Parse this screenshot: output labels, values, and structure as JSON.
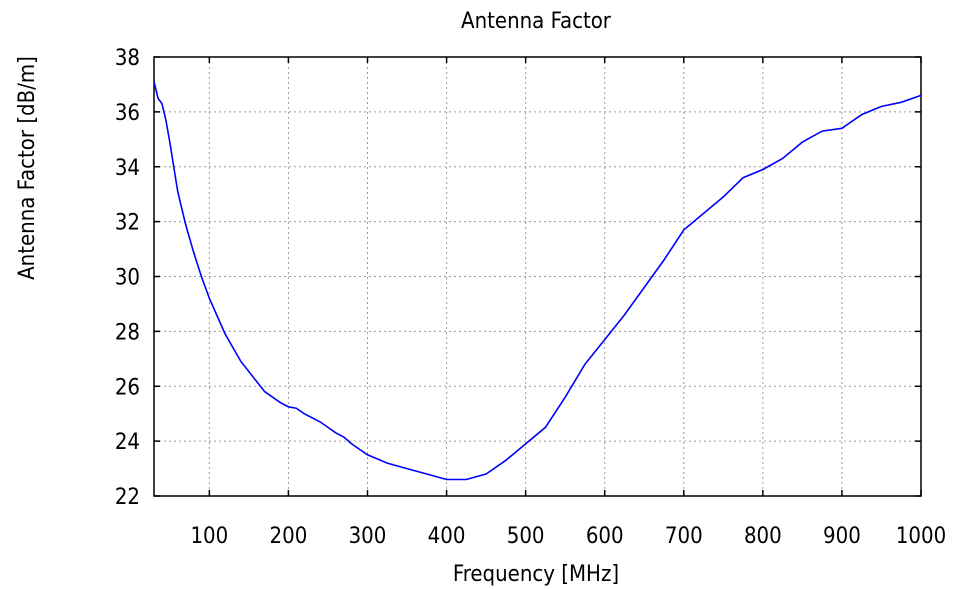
{
  "chart_data": {
    "type": "line",
    "title": "Antenna Factor",
    "xlabel": "Frequency [MHz]",
    "ylabel": "Antenna Factor [dB/m]",
    "xlim": [
      30,
      1000
    ],
    "ylim": [
      22,
      38
    ],
    "xticks": [
      100,
      200,
      300,
      400,
      500,
      600,
      700,
      800,
      900,
      1000
    ],
    "yticks": [
      22,
      24,
      26,
      28,
      30,
      32,
      34,
      36,
      38
    ],
    "grid": true,
    "line_color": "#0000ff",
    "series": [
      {
        "x": [
          30,
          35,
          40,
          45,
          50,
          60,
          70,
          80,
          90,
          100,
          120,
          140,
          170,
          180,
          190,
          200,
          210,
          220,
          240,
          260,
          270,
          280,
          290,
          300,
          325,
          350,
          375,
          400,
          425,
          450,
          475,
          500,
          525,
          550,
          575,
          600,
          625,
          650,
          675,
          700,
          725,
          750,
          775,
          800,
          825,
          850,
          875,
          900,
          925,
          950,
          975,
          1000
        ],
        "y": [
          37.1,
          36.5,
          36.3,
          35.7,
          34.9,
          33.1,
          31.9,
          30.9,
          30.0,
          29.2,
          27.9,
          26.9,
          25.8,
          25.6,
          25.4,
          25.25,
          25.2,
          25.0,
          24.7,
          24.3,
          24.15,
          23.9,
          23.7,
          23.5,
          23.2,
          23.0,
          22.8,
          22.6,
          22.6,
          22.8,
          23.3,
          23.9,
          24.5,
          25.6,
          26.8,
          27.7,
          28.6,
          29.6,
          30.6,
          31.7,
          32.3,
          32.9,
          33.6,
          33.9,
          34.3,
          34.9,
          35.3,
          35.4,
          35.9,
          36.2,
          36.35,
          36.6
        ]
      }
    ]
  }
}
